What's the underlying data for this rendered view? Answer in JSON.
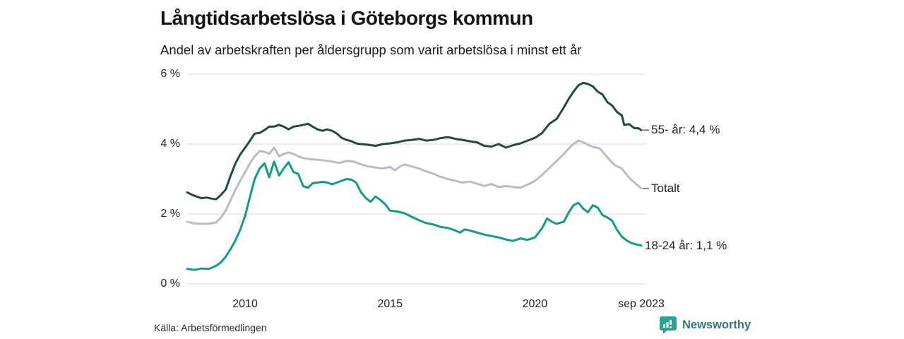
{
  "title": "Långtidsarbetslösa i Göteborgs kommun",
  "subtitle": "Andel av arbetskraften per åldersgrupp som varit arbetslösa i minst ett år",
  "source": "Källa: Arbetsförmedlingen",
  "brand": {
    "name": "Newsworthy",
    "text_color": "#35787c",
    "icon_color": "#2ba296",
    "icon": "bar-chart-speech-bubble-icon"
  },
  "colors": {
    "grid": "#e4e4ea",
    "axis_text": "#222222",
    "series_55": "#234a41",
    "series_totalt": "#bdbac7",
    "series_18_24": "#149a8a"
  },
  "chart_data": {
    "type": "line",
    "title": "Långtidsarbetslösa i Göteborgs kommun",
    "subtitle": "Andel av arbetskraften per åldersgrupp som varit arbetslösa i minst ett år",
    "unit": "%",
    "grid": true,
    "legend_position": "right-of-line-ends",
    "x_axis": {
      "range": [
        2008.0,
        2023.75
      ],
      "ticks": [
        {
          "label": "2010",
          "x": 2010.0
        },
        {
          "label": "2015",
          "x": 2015.0
        },
        {
          "label": "2020",
          "x": 2020.0
        },
        {
          "label": "sep 2023",
          "x": 2023.67
        }
      ]
    },
    "y_axis": {
      "range": [
        0,
        6
      ],
      "ticks": [
        {
          "label": "0 %",
          "value": 0
        },
        {
          "label": "2 %",
          "value": 2
        },
        {
          "label": "4 %",
          "value": 4
        },
        {
          "label": "6 %",
          "value": 6
        }
      ]
    },
    "series": [
      {
        "id": "55-ar",
        "name": "55- år",
        "end_label": "55- år: 4,4 %",
        "end_value": "4,4 %",
        "color": "#234a41",
        "leader_dash": true,
        "points": [
          [
            2008.0,
            2.62
          ],
          [
            2008.17,
            2.55
          ],
          [
            2008.33,
            2.5
          ],
          [
            2008.5,
            2.45
          ],
          [
            2008.67,
            2.47
          ],
          [
            2008.83,
            2.44
          ],
          [
            2009.0,
            2.42
          ],
          [
            2009.17,
            2.55
          ],
          [
            2009.33,
            2.7
          ],
          [
            2009.5,
            3.1
          ],
          [
            2009.67,
            3.45
          ],
          [
            2009.83,
            3.7
          ],
          [
            2010.0,
            3.9
          ],
          [
            2010.17,
            4.1
          ],
          [
            2010.33,
            4.3
          ],
          [
            2010.5,
            4.32
          ],
          [
            2010.67,
            4.4
          ],
          [
            2010.83,
            4.5
          ],
          [
            2011.0,
            4.5
          ],
          [
            2011.17,
            4.55
          ],
          [
            2011.33,
            4.5
          ],
          [
            2011.5,
            4.42
          ],
          [
            2011.67,
            4.5
          ],
          [
            2011.83,
            4.52
          ],
          [
            2012.0,
            4.55
          ],
          [
            2012.17,
            4.58
          ],
          [
            2012.33,
            4.5
          ],
          [
            2012.5,
            4.42
          ],
          [
            2012.67,
            4.38
          ],
          [
            2012.83,
            4.42
          ],
          [
            2013.0,
            4.38
          ],
          [
            2013.17,
            4.3
          ],
          [
            2013.33,
            4.18
          ],
          [
            2013.5,
            4.12
          ],
          [
            2013.67,
            4.08
          ],
          [
            2013.83,
            4.02
          ],
          [
            2014.0,
            4.0
          ],
          [
            2014.25,
            3.98
          ],
          [
            2014.5,
            3.95
          ],
          [
            2014.75,
            4.0
          ],
          [
            2015.0,
            4.02
          ],
          [
            2015.25,
            4.05
          ],
          [
            2015.5,
            4.1
          ],
          [
            2015.75,
            4.12
          ],
          [
            2016.0,
            4.15
          ],
          [
            2016.25,
            4.1
          ],
          [
            2016.5,
            4.12
          ],
          [
            2016.75,
            4.17
          ],
          [
            2017.0,
            4.2
          ],
          [
            2017.25,
            4.15
          ],
          [
            2017.5,
            4.12
          ],
          [
            2017.75,
            4.08
          ],
          [
            2018.0,
            4.05
          ],
          [
            2018.25,
            3.95
          ],
          [
            2018.5,
            3.93
          ],
          [
            2018.75,
            4.0
          ],
          [
            2019.0,
            3.9
          ],
          [
            2019.25,
            3.97
          ],
          [
            2019.5,
            4.02
          ],
          [
            2019.75,
            4.1
          ],
          [
            2020.0,
            4.18
          ],
          [
            2020.25,
            4.32
          ],
          [
            2020.5,
            4.58
          ],
          [
            2020.75,
            4.72
          ],
          [
            2021.0,
            5.05
          ],
          [
            2021.17,
            5.3
          ],
          [
            2021.33,
            5.5
          ],
          [
            2021.5,
            5.68
          ],
          [
            2021.67,
            5.75
          ],
          [
            2021.83,
            5.72
          ],
          [
            2022.0,
            5.65
          ],
          [
            2022.17,
            5.5
          ],
          [
            2022.33,
            5.42
          ],
          [
            2022.5,
            5.2
          ],
          [
            2022.67,
            5.1
          ],
          [
            2022.83,
            4.92
          ],
          [
            2023.0,
            4.82
          ],
          [
            2023.08,
            4.55
          ],
          [
            2023.25,
            4.57
          ],
          [
            2023.42,
            4.46
          ],
          [
            2023.58,
            4.45
          ],
          [
            2023.67,
            4.4
          ]
        ]
      },
      {
        "id": "totalt",
        "name": "Totalt",
        "end_label": "Totalt",
        "end_value": "2,7 %",
        "color": "#bdbac7",
        "leader_dash": true,
        "points": [
          [
            2008.0,
            1.78
          ],
          [
            2008.25,
            1.73
          ],
          [
            2008.5,
            1.72
          ],
          [
            2008.75,
            1.72
          ],
          [
            2009.0,
            1.76
          ],
          [
            2009.17,
            1.9
          ],
          [
            2009.33,
            2.1
          ],
          [
            2009.5,
            2.4
          ],
          [
            2009.67,
            2.7
          ],
          [
            2009.83,
            2.95
          ],
          [
            2010.0,
            3.2
          ],
          [
            2010.17,
            3.45
          ],
          [
            2010.33,
            3.65
          ],
          [
            2010.5,
            3.8
          ],
          [
            2010.67,
            3.78
          ],
          [
            2010.83,
            3.72
          ],
          [
            2011.0,
            3.9
          ],
          [
            2011.17,
            3.65
          ],
          [
            2011.33,
            3.72
          ],
          [
            2011.5,
            3.76
          ],
          [
            2011.67,
            3.72
          ],
          [
            2011.83,
            3.65
          ],
          [
            2012.0,
            3.6
          ],
          [
            2012.25,
            3.57
          ],
          [
            2012.5,
            3.55
          ],
          [
            2012.75,
            3.53
          ],
          [
            2013.0,
            3.5
          ],
          [
            2013.25,
            3.46
          ],
          [
            2013.5,
            3.52
          ],
          [
            2013.75,
            3.5
          ],
          [
            2014.0,
            3.42
          ],
          [
            2014.25,
            3.36
          ],
          [
            2014.5,
            3.33
          ],
          [
            2014.75,
            3.3
          ],
          [
            2015.0,
            3.35
          ],
          [
            2015.17,
            3.25
          ],
          [
            2015.33,
            3.35
          ],
          [
            2015.5,
            3.42
          ],
          [
            2015.75,
            3.36
          ],
          [
            2016.0,
            3.3
          ],
          [
            2016.25,
            3.22
          ],
          [
            2016.5,
            3.15
          ],
          [
            2016.75,
            3.06
          ],
          [
            2017.0,
            3.0
          ],
          [
            2017.25,
            2.95
          ],
          [
            2017.5,
            2.9
          ],
          [
            2017.75,
            2.93
          ],
          [
            2018.0,
            2.87
          ],
          [
            2018.25,
            2.8
          ],
          [
            2018.5,
            2.86
          ],
          [
            2018.75,
            2.77
          ],
          [
            2019.0,
            2.8
          ],
          [
            2019.25,
            2.77
          ],
          [
            2019.5,
            2.75
          ],
          [
            2019.75,
            2.84
          ],
          [
            2020.0,
            2.95
          ],
          [
            2020.25,
            3.12
          ],
          [
            2020.5,
            3.32
          ],
          [
            2020.75,
            3.52
          ],
          [
            2021.0,
            3.72
          ],
          [
            2021.25,
            3.95
          ],
          [
            2021.5,
            4.1
          ],
          [
            2021.67,
            4.05
          ],
          [
            2021.83,
            3.98
          ],
          [
            2022.0,
            3.92
          ],
          [
            2022.25,
            3.87
          ],
          [
            2022.5,
            3.62
          ],
          [
            2022.75,
            3.4
          ],
          [
            2023.0,
            3.3
          ],
          [
            2023.17,
            3.12
          ],
          [
            2023.33,
            2.97
          ],
          [
            2023.5,
            2.85
          ],
          [
            2023.67,
            2.73
          ]
        ]
      },
      {
        "id": "18-24-ar",
        "name": "18-24 år",
        "end_label": "18-24 år: 1,1 %",
        "end_value": "1,1 %",
        "color": "#149a8a",
        "leader_dash": false,
        "points": [
          [
            2008.0,
            0.43
          ],
          [
            2008.25,
            0.4
          ],
          [
            2008.5,
            0.44
          ],
          [
            2008.75,
            0.43
          ],
          [
            2009.0,
            0.52
          ],
          [
            2009.17,
            0.62
          ],
          [
            2009.33,
            0.78
          ],
          [
            2009.5,
            1.0
          ],
          [
            2009.67,
            1.25
          ],
          [
            2009.83,
            1.55
          ],
          [
            2010.0,
            1.95
          ],
          [
            2010.17,
            2.5
          ],
          [
            2010.33,
            3.0
          ],
          [
            2010.5,
            3.3
          ],
          [
            2010.67,
            3.45
          ],
          [
            2010.83,
            3.05
          ],
          [
            2011.0,
            3.5
          ],
          [
            2011.17,
            3.1
          ],
          [
            2011.33,
            3.3
          ],
          [
            2011.5,
            3.48
          ],
          [
            2011.67,
            3.2
          ],
          [
            2011.83,
            3.15
          ],
          [
            2012.0,
            2.8
          ],
          [
            2012.17,
            2.75
          ],
          [
            2012.33,
            2.88
          ],
          [
            2012.5,
            2.9
          ],
          [
            2012.67,
            2.92
          ],
          [
            2012.83,
            2.9
          ],
          [
            2013.0,
            2.85
          ],
          [
            2013.17,
            2.9
          ],
          [
            2013.33,
            2.95
          ],
          [
            2013.5,
            3.0
          ],
          [
            2013.67,
            2.98
          ],
          [
            2013.83,
            2.9
          ],
          [
            2014.0,
            2.62
          ],
          [
            2014.17,
            2.45
          ],
          [
            2014.33,
            2.35
          ],
          [
            2014.5,
            2.5
          ],
          [
            2014.67,
            2.4
          ],
          [
            2014.83,
            2.28
          ],
          [
            2015.0,
            2.1
          ],
          [
            2015.25,
            2.07
          ],
          [
            2015.5,
            2.02
          ],
          [
            2015.75,
            1.92
          ],
          [
            2016.0,
            1.82
          ],
          [
            2016.25,
            1.74
          ],
          [
            2016.5,
            1.7
          ],
          [
            2016.75,
            1.63
          ],
          [
            2017.0,
            1.6
          ],
          [
            2017.25,
            1.53
          ],
          [
            2017.42,
            1.47
          ],
          [
            2017.58,
            1.56
          ],
          [
            2017.75,
            1.53
          ],
          [
            2018.0,
            1.47
          ],
          [
            2018.25,
            1.41
          ],
          [
            2018.5,
            1.37
          ],
          [
            2018.75,
            1.33
          ],
          [
            2019.0,
            1.27
          ],
          [
            2019.25,
            1.23
          ],
          [
            2019.5,
            1.3
          ],
          [
            2019.75,
            1.26
          ],
          [
            2020.0,
            1.33
          ],
          [
            2020.25,
            1.6
          ],
          [
            2020.42,
            1.87
          ],
          [
            2020.58,
            1.78
          ],
          [
            2020.75,
            1.72
          ],
          [
            2021.0,
            1.78
          ],
          [
            2021.17,
            2.05
          ],
          [
            2021.33,
            2.25
          ],
          [
            2021.5,
            2.32
          ],
          [
            2021.67,
            2.15
          ],
          [
            2021.83,
            2.05
          ],
          [
            2022.0,
            2.25
          ],
          [
            2022.17,
            2.18
          ],
          [
            2022.33,
            1.97
          ],
          [
            2022.5,
            1.9
          ],
          [
            2022.67,
            1.8
          ],
          [
            2022.83,
            1.55
          ],
          [
            2023.0,
            1.35
          ],
          [
            2023.17,
            1.24
          ],
          [
            2023.33,
            1.17
          ],
          [
            2023.5,
            1.13
          ],
          [
            2023.67,
            1.1
          ]
        ]
      }
    ]
  }
}
